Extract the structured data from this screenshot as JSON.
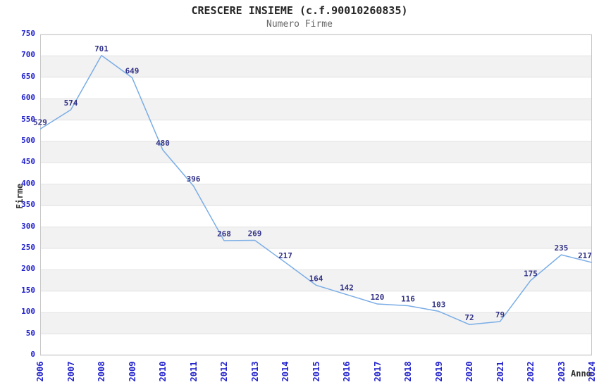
{
  "chart_data": {
    "type": "line",
    "title": "CRESCERE INSIEME (c.f.90010260835)",
    "subtitle": "Numero Firme",
    "xlabel": "Anno",
    "ylabel": "Firme",
    "categories": [
      "2006",
      "2007",
      "2008",
      "2009",
      "2010",
      "2011",
      "2012",
      "2013",
      "2014",
      "2015",
      "2016",
      "2017",
      "2018",
      "2019",
      "2020",
      "2021",
      "2022",
      "2023",
      "2024"
    ],
    "series": [
      {
        "name": "Numero Firme",
        "values": [
          529,
          574,
          701,
          649,
          480,
          396,
          268,
          269,
          217,
          164,
          142,
          120,
          116,
          103,
          72,
          79,
          175,
          235,
          217
        ]
      }
    ],
    "ylim": [
      0,
      750
    ],
    "ytick_step": 50,
    "grid": true,
    "banded_background": true,
    "legend_position": "none",
    "colors": {
      "line": "#7aade6",
      "data_label": "#333388",
      "tick_label": "#2222cc",
      "band": "#f2f2f2",
      "gridline": "#e2e2e2",
      "plot_border": "#c8c8c8",
      "title": "#262626",
      "subtitle": "#666666",
      "axis_title": "#333333"
    }
  }
}
